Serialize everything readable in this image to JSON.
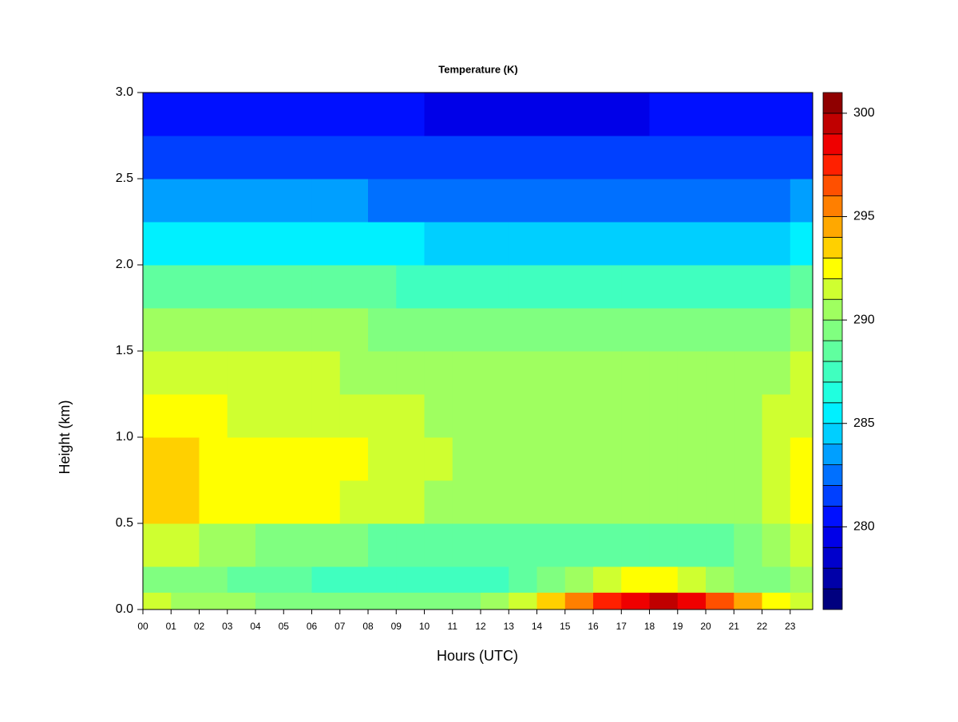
{
  "chart_data": {
    "type": "heatmap",
    "title": "Temperature (K)",
    "x_label": "Hours (UTC)",
    "y_label": "Height (km)",
    "x_bins": [
      0,
      1,
      2,
      3,
      4,
      5,
      6,
      7,
      8,
      9,
      10,
      11,
      12,
      13,
      14,
      15,
      16,
      17,
      18,
      19,
      20,
      21,
      22,
      23,
      23.8
    ],
    "y_bins": [
      0,
      0.1,
      0.25,
      0.5,
      0.75,
      1.0,
      1.25,
      1.5,
      1.75,
      2.0,
      2.25,
      2.5,
      2.75,
      3.0
    ],
    "values": [
      [
        291,
        290,
        290,
        290,
        289,
        289,
        289,
        289,
        289,
        289,
        289,
        289,
        290,
        291,
        293,
        295,
        297,
        298,
        299,
        298,
        296,
        294,
        292,
        291
      ],
      [
        289,
        289,
        289,
        288,
        288,
        288,
        287,
        287,
        287,
        287,
        287,
        287,
        287,
        288,
        289,
        290,
        291,
        292,
        292,
        291,
        290,
        289,
        289,
        290
      ],
      [
        291,
        291,
        290,
        290,
        289,
        289,
        289,
        289,
        288,
        288,
        288,
        288,
        288,
        288,
        288,
        288,
        288,
        288,
        288,
        288,
        288,
        289,
        290,
        291
      ],
      [
        293,
        293,
        292,
        292,
        292,
        292,
        292,
        291,
        291,
        291,
        290,
        290,
        290,
        290,
        290,
        290,
        290,
        290,
        290,
        290,
        290,
        290,
        291,
        292
      ],
      [
        293,
        293,
        292,
        292,
        292,
        292,
        292,
        292,
        291,
        291,
        291,
        290,
        290,
        290,
        290,
        290,
        290,
        290,
        290,
        290,
        290,
        290,
        291,
        292
      ],
      [
        292,
        292,
        292,
        291,
        291,
        291,
        291,
        291,
        291,
        291,
        290,
        290,
        290,
        290,
        290,
        290,
        290,
        290,
        290,
        290,
        290,
        290,
        291,
        291
      ],
      [
        291,
        291,
        291,
        291,
        291,
        291,
        291,
        290,
        290,
        290,
        290,
        290,
        290,
        290,
        290,
        290,
        290,
        290,
        290,
        290,
        290,
        290,
        290,
        291
      ],
      [
        290,
        290,
        290,
        290,
        290,
        290,
        290,
        290,
        289,
        289,
        289,
        289,
        289,
        289,
        289,
        289,
        289,
        289,
        289,
        289,
        289,
        289,
        289,
        290
      ],
      [
        288,
        288,
        288,
        288,
        288,
        288,
        288,
        288,
        288,
        287,
        287,
        287,
        287,
        287,
        287,
        287,
        287,
        287,
        287,
        287,
        287,
        287,
        287,
        288
      ],
      [
        285,
        285,
        285,
        285,
        285,
        285,
        285,
        285,
        285,
        285,
        284,
        284,
        284,
        284,
        284,
        284,
        284,
        284,
        284,
        284,
        284,
        284,
        284,
        285
      ],
      [
        283,
        283,
        283,
        283,
        283,
        283,
        283,
        283,
        282,
        282,
        282,
        282,
        282,
        282,
        282,
        282,
        282,
        282,
        282,
        282,
        282,
        282,
        282,
        283
      ],
      [
        281,
        281,
        281,
        281,
        281,
        281,
        281,
        281,
        281,
        281,
        281,
        281,
        281,
        281,
        281,
        281,
        281,
        281,
        281,
        281,
        281,
        281,
        281,
        281
      ],
      [
        280,
        280,
        280,
        280,
        280,
        280,
        280,
        280,
        280,
        280,
        279,
        279,
        279,
        279,
        279,
        279,
        279,
        279,
        280,
        280,
        280,
        280,
        280,
        280
      ]
    ],
    "xlim": [
      0,
      23.8
    ],
    "ylim": [
      0,
      3
    ],
    "xticks": [
      {
        "value": 0,
        "label": "00"
      },
      {
        "value": 1,
        "label": "01"
      },
      {
        "value": 2,
        "label": "02"
      },
      {
        "value": 3,
        "label": "03"
      },
      {
        "value": 4,
        "label": "04"
      },
      {
        "value": 5,
        "label": "05"
      },
      {
        "value": 6,
        "label": "06"
      },
      {
        "value": 7,
        "label": "07"
      },
      {
        "value": 8,
        "label": "08"
      },
      {
        "value": 9,
        "label": "09"
      },
      10,
      11,
      12,
      13,
      14,
      15,
      16,
      17,
      18,
      19,
      20,
      21,
      22,
      23
    ],
    "yticks": [
      {
        "value": 0,
        "label": "0.0"
      },
      0.5,
      {
        "value": 1,
        "label": "1.0"
      },
      1.5,
      {
        "value": 2,
        "label": "2.0"
      },
      2.5,
      {
        "value": 3,
        "label": "3.0"
      }
    ],
    "levels": [
      276,
      277,
      278,
      279,
      280,
      281,
      282,
      283,
      284,
      285,
      286,
      287,
      288,
      289,
      290,
      291,
      292,
      293,
      294,
      295,
      296,
      297,
      298,
      299,
      300,
      301
    ],
    "colors": [
      "#00007f",
      "#0000a8",
      "#0000cc",
      "#0000e8",
      "#0010ff",
      "#0040ff",
      "#0070ff",
      "#009fff",
      "#00cfff",
      "#00f0ff",
      "#20ffdf",
      "#40ffbf",
      "#60ff9f",
      "#80ff80",
      "#9fff60",
      "#cfff30",
      "#ffff00",
      "#ffd000",
      "#ffa800",
      "#ff7f00",
      "#ff5000",
      "#ff2000",
      "#ef0000",
      "#c00000",
      "#8f0000"
    ],
    "colorbar_ticks": [
      280,
      285,
      290,
      295,
      300
    ]
  }
}
